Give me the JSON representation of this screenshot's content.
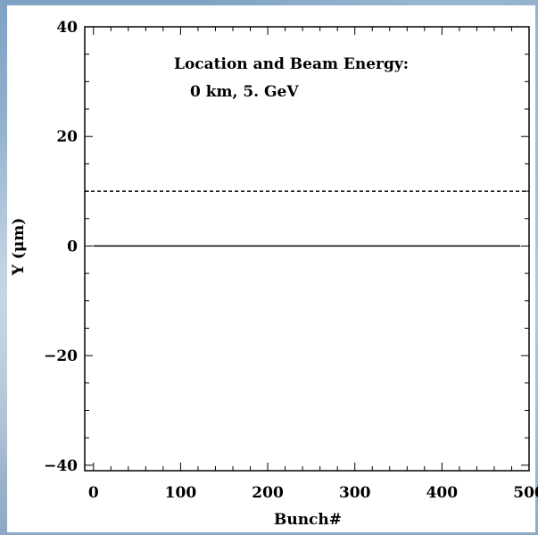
{
  "chart_data": {
    "type": "line",
    "title": "",
    "xlabel": "Bunch#",
    "ylabel": "Y (μm)",
    "xlim": [
      -10,
      500
    ],
    "ylim": [
      -41,
      40
    ],
    "xticks": [
      0,
      100,
      200,
      300,
      400,
      500
    ],
    "xtick_labels": [
      "0",
      "100",
      "200",
      "300",
      "400",
      "500"
    ],
    "yticks": [
      -40,
      -20,
      0,
      20,
      40
    ],
    "ytick_labels": [
      "−40",
      "−20",
      "0",
      "20",
      "40"
    ],
    "grid": false,
    "annotation": {
      "line1": "Location and Beam Energy:",
      "line2": "0 km, 5. GeV"
    },
    "series": [
      {
        "style": "solid",
        "x": [
          0,
          490
        ],
        "y": [
          0,
          0
        ]
      },
      {
        "style": "dashed",
        "x": [
          -10,
          500
        ],
        "y": [
          10,
          10
        ]
      }
    ]
  }
}
